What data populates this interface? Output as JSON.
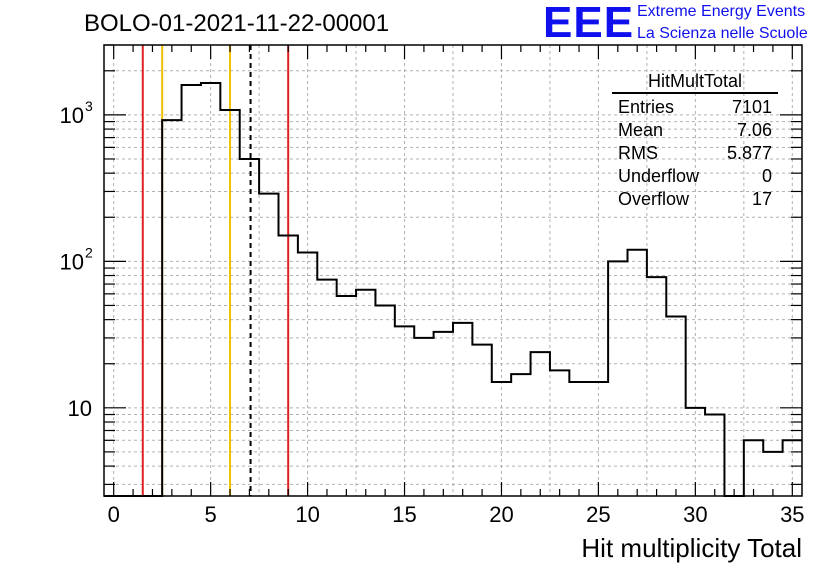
{
  "page": {
    "title": "BOLO-01-2021-11-22-00001",
    "logo": {
      "mark": "EEE",
      "line1": "Extreme Energy Events",
      "line2": "La Scienza nelle Scuole"
    }
  },
  "stats_box": {
    "title": "HitMultTotal",
    "rows": [
      {
        "label": "Entries",
        "value": "7101"
      },
      {
        "label": "Mean",
        "value": "7.06"
      },
      {
        "label": "RMS",
        "value": "5.877"
      },
      {
        "label": "Underflow",
        "value": "0"
      },
      {
        "label": "Overflow",
        "value": "17"
      }
    ]
  },
  "chart_data": {
    "type": "histogram",
    "title": "BOLO-01-2021-11-22-00001",
    "xlabel": "Hit multiplicity Total",
    "ylabel": "",
    "xlim": [
      -0.5,
      35.5
    ],
    "ylim": [
      2.5,
      3000
    ],
    "y_scale": "log",
    "grid": true,
    "bin_width": 1,
    "bin_centers": [
      0,
      1,
      2,
      3,
      4,
      5,
      6,
      7,
      8,
      9,
      10,
      11,
      12,
      13,
      14,
      15,
      16,
      17,
      18,
      19,
      20,
      21,
      22,
      23,
      24,
      25,
      26,
      27,
      28,
      29,
      30,
      31,
      32,
      33,
      34,
      35
    ],
    "counts": [
      0,
      0,
      0,
      920,
      1600,
      1650,
      1080,
      500,
      290,
      150,
      115,
      75,
      58,
      64,
      50,
      36,
      30,
      33,
      38,
      27,
      15,
      17,
      24,
      18,
      15,
      15,
      100,
      120,
      78,
      42,
      10,
      9,
      0,
      6,
      5,
      6
    ],
    "x_ticks": [
      0,
      5,
      10,
      15,
      20,
      25,
      30,
      35
    ],
    "x_tick_labels": [
      "0",
      "5",
      "10",
      "15",
      "20",
      "25",
      "30",
      "35"
    ],
    "y_ticks": [
      10,
      100,
      1000
    ],
    "vertical_lines": [
      {
        "x": 1.5,
        "color": "#e02020",
        "style": "solid"
      },
      {
        "x": 2.5,
        "color": "#f0c000",
        "style": "solid"
      },
      {
        "x": 6.0,
        "color": "#f0c000",
        "style": "solid"
      },
      {
        "x": 7.06,
        "color": "#000000",
        "style": "dashed"
      },
      {
        "x": 9.0,
        "color": "#e02020",
        "style": "solid"
      }
    ]
  }
}
